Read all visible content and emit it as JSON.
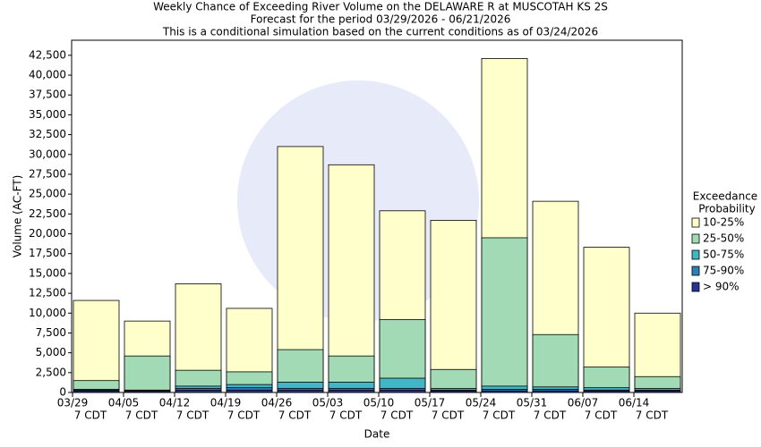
{
  "chart_data": {
    "type": "overlapping_bar",
    "title": [
      "Weekly Chance of Exceeding River Volume on the DELAWARE R at MUSCOTAH KS 2S",
      "Forecast for the period 03/29/2026 - 06/21/2026",
      "This is a conditional simulation based on the current conditions as of 03/24/2026"
    ],
    "y_label": "Volume (AC-FT)",
    "x_label": "Date",
    "legend_title": [
      "Exceedance",
      "Probability"
    ],
    "categories": [
      "03/29",
      "04/05",
      "04/12",
      "04/19",
      "04/26",
      "05/03",
      "05/10",
      "05/17",
      "05/24",
      "05/31",
      "06/07",
      "06/14"
    ],
    "category_sublabels": [
      "7 CDT",
      "7 CDT",
      "7 CDT",
      "7 CDT",
      "7 CDT",
      "7 CDT",
      "7 CDT",
      "7 CDT",
      "7 CDT",
      "7 CDT",
      "7 CDT",
      "7 CDT"
    ],
    "series": [
      {
        "name": "10-25%",
        "color": "#ffffcc",
        "values": [
          11600,
          9000,
          13700,
          10600,
          31000,
          28700,
          22900,
          21700,
          42100,
          24100,
          18300,
          10000
        ]
      },
      {
        "name": "25-50%",
        "color": "#a1dab4",
        "values": [
          1500,
          4600,
          2800,
          2600,
          5400,
          4600,
          9200,
          2900,
          19500,
          7300,
          3200,
          2000
        ]
      },
      {
        "name": "50-75%",
        "color": "#41b6c4",
        "values": [
          400,
          300,
          800,
          1000,
          1300,
          1300,
          1800,
          500,
          800,
          700,
          600,
          500
        ]
      },
      {
        "name": "75-90%",
        "color": "#2c7fb8",
        "values": [
          300,
          250,
          500,
          600,
          500,
          500,
          500,
          300,
          400,
          400,
          300,
          300
        ]
      },
      {
        "name": "> 90%",
        "color": "#253494",
        "values": [
          200,
          150,
          300,
          300,
          300,
          300,
          300,
          200,
          200,
          200,
          200,
          200
        ]
      }
    ],
    "ylim": [
      0,
      44400
    ],
    "yticks": [
      0,
      {
        "value": 2500,
        "label": "2,500"
      },
      {
        "value": 5000,
        "label": "5,000"
      },
      {
        "value": 7500,
        "label": "7,500"
      },
      {
        "value": 10000,
        "label": "10,000"
      },
      {
        "value": 12500,
        "label": "12,500"
      },
      {
        "value": 15000,
        "label": "15,000"
      },
      {
        "value": 17500,
        "label": "17,500"
      },
      {
        "value": 20000,
        "label": "20,000"
      },
      {
        "value": 22500,
        "label": "22,500"
      },
      {
        "value": 25000,
        "label": "25,000"
      },
      {
        "value": 27500,
        "label": "27,500"
      },
      {
        "value": 30000,
        "label": "30,000"
      },
      {
        "value": 32500,
        "label": "32,500"
      },
      {
        "value": 35000,
        "label": "35,000"
      },
      {
        "value": 37500,
        "label": "37,500"
      },
      {
        "value": 40000,
        "label": "40,000"
      },
      {
        "value": 42500,
        "label": "42,500"
      }
    ]
  }
}
